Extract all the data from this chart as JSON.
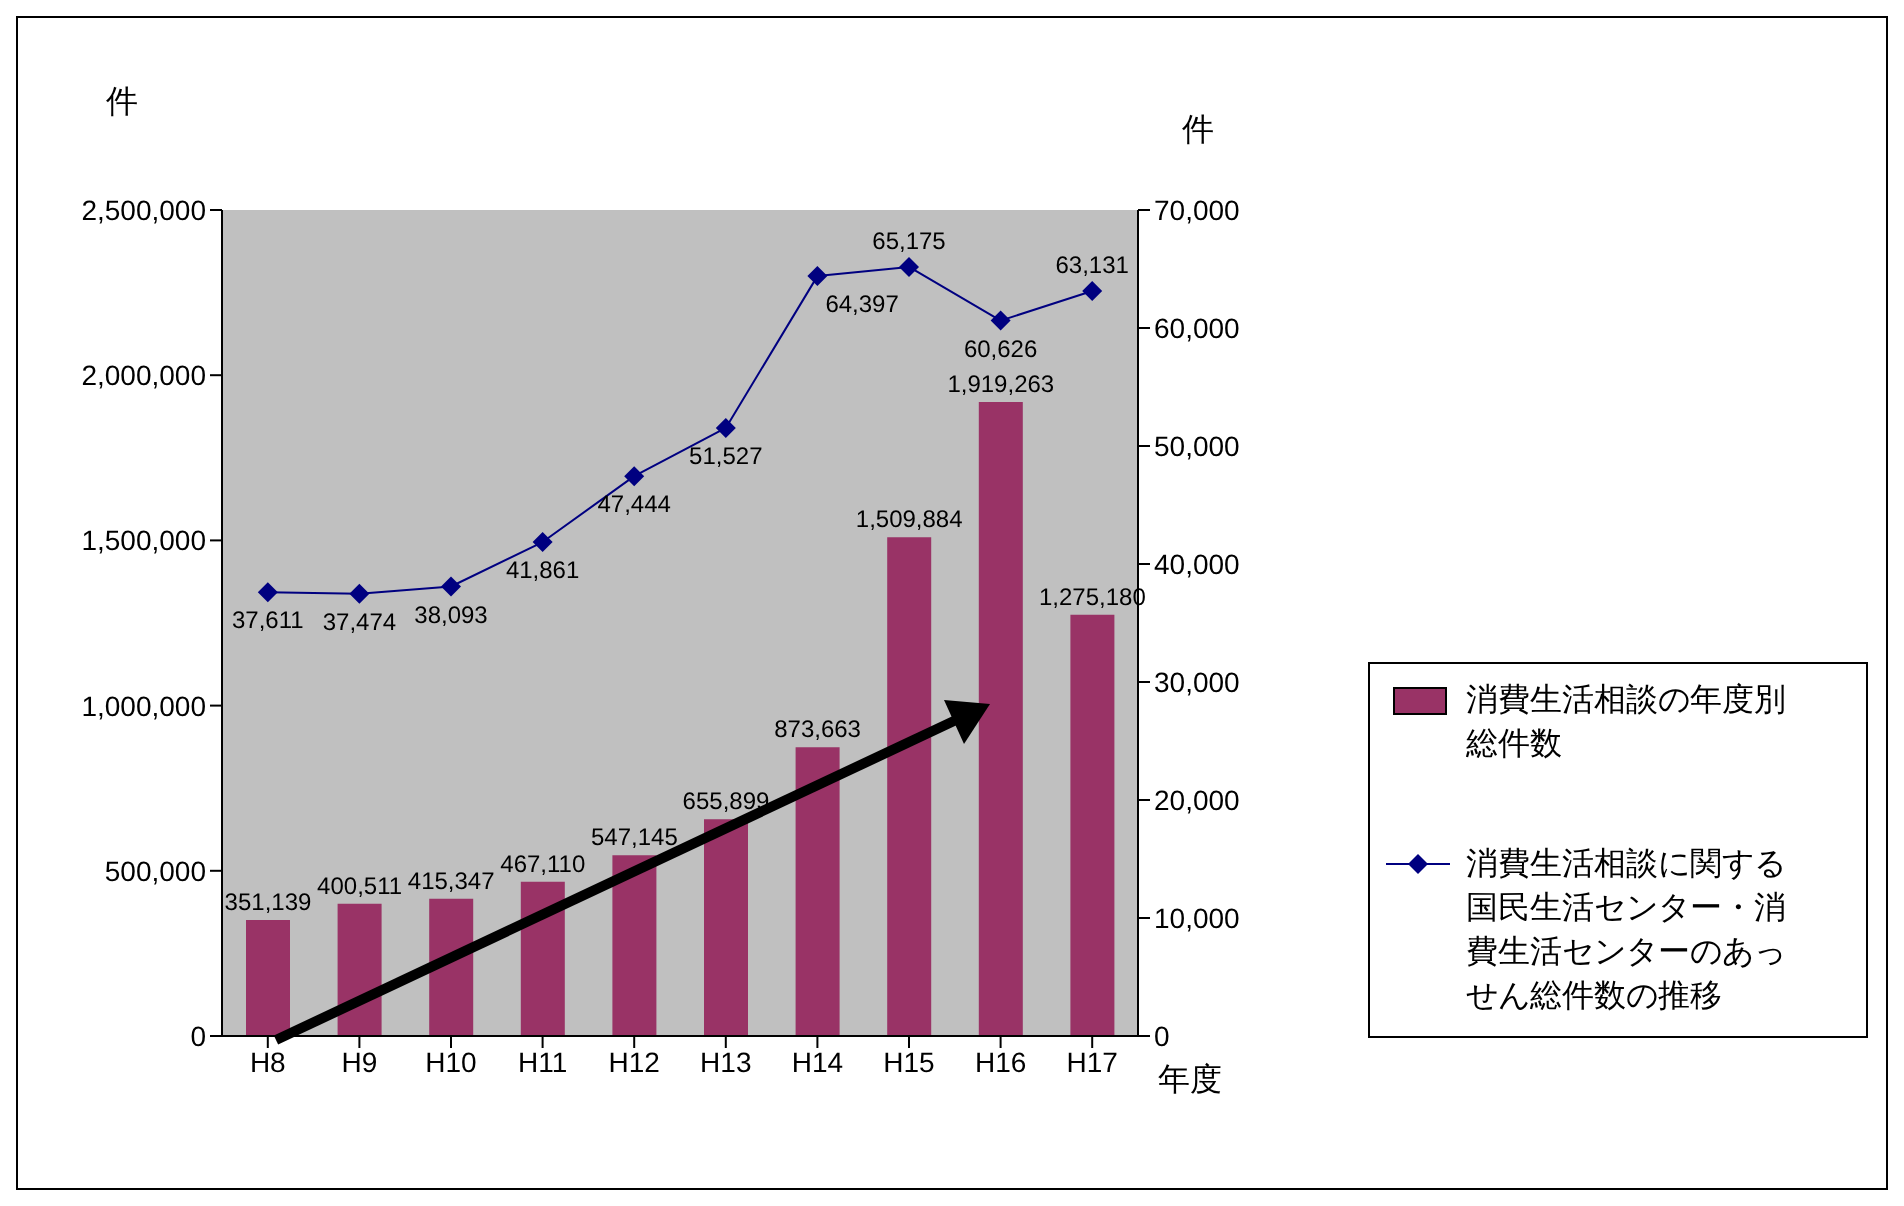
{
  "chart_data": {
    "type": "bar",
    "ylabel": "件",
    "y2label": "件",
    "xlabel": "年度",
    "categories": [
      "H8",
      "H9",
      "H10",
      "H11",
      "H12",
      "H13",
      "H14",
      "H15",
      "H16",
      "H17"
    ],
    "series": [
      {
        "name": "消費生活相談の年度別総件数",
        "color": "#993366",
        "values": [
          351139,
          400511,
          415347,
          467110,
          547145,
          655899,
          873663,
          1509884,
          1919263,
          1275180
        ],
        "value_labels": [
          "351,139",
          "400,511",
          "415,347",
          "467,110",
          "547,145",
          "655,899",
          "873,663",
          "1,509,884",
          "1,919,263",
          "1,275,180"
        ]
      },
      {
        "name": "消費生活相談に関する国民生活センター・消費生活センターのあっせん総件数の推移",
        "type": "line",
        "axis": "y2",
        "color": "#000080",
        "marker": "diamond",
        "values": [
          37611,
          37474,
          38093,
          41861,
          47444,
          51527,
          64397,
          65175,
          60626,
          63131
        ],
        "value_labels": [
          "37,611",
          "37,474",
          "38,093",
          "41,861",
          "47,444",
          "51,527",
          "64,397",
          "65,175",
          "60,626",
          "63,131"
        ]
      }
    ],
    "ylim": [
      0,
      2500000
    ],
    "yticks": [
      0,
      {
        "value": 500000,
        "label": "500,000"
      },
      {
        "value": 1000000,
        "label": "1,000,000"
      },
      {
        "value": 1500000,
        "label": "1,500,000"
      },
      {
        "value": 2000000,
        "label": "2,000,000"
      },
      {
        "value": 2500000,
        "label": "2,500,000"
      }
    ],
    "y2lim": [
      0,
      70000
    ],
    "y2ticks": [
      0,
      {
        "value": 10000,
        "label": "10,000"
      },
      {
        "value": 20000,
        "label": "20,000"
      },
      {
        "value": 30000,
        "label": "30,000"
      },
      {
        "value": 40000,
        "label": "40,000"
      },
      {
        "value": 50000,
        "label": "50,000"
      },
      {
        "value": 60000,
        "label": "60,000"
      },
      {
        "value": 70000,
        "label": "70,000"
      }
    ],
    "grid": false,
    "legend": "right"
  }
}
